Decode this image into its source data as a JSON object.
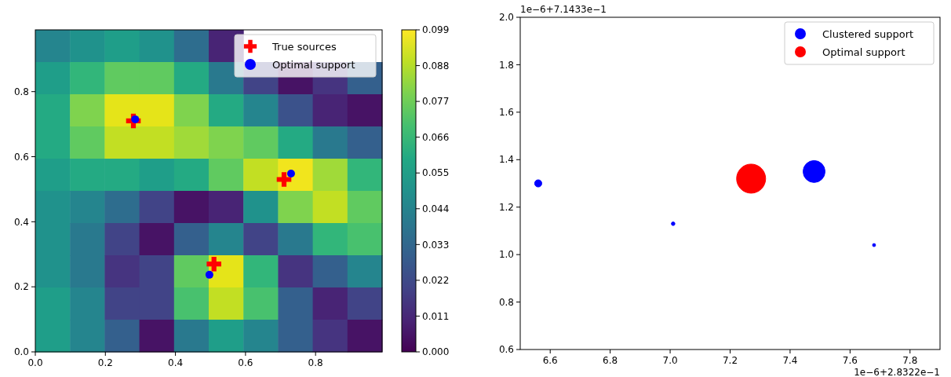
{
  "chart_data": [
    {
      "type": "heatmap",
      "categories": [
        null,
        null,
        null,
        null,
        null,
        null,
        null,
        null,
        null,
        null
      ],
      "y_categories": [
        null,
        null,
        null,
        null,
        null,
        null,
        null,
        null,
        null,
        null
      ],
      "cells": [
        [
          0.045,
          0.05,
          0.055,
          0.05,
          0.035,
          0.01,
          null,
          null,
          null,
          null
        ],
        [
          0.055,
          0.065,
          0.075,
          0.075,
          0.06,
          0.04,
          0.02,
          0.005,
          0.015,
          0.03
        ],
        [
          0.06,
          0.08,
          0.095,
          0.095,
          0.08,
          0.06,
          0.045,
          0.025,
          0.01,
          0.005
        ],
        [
          0.06,
          0.075,
          0.09,
          0.09,
          0.085,
          0.08,
          0.075,
          0.06,
          0.04,
          0.03
        ],
        [
          0.055,
          0.06,
          0.06,
          0.055,
          0.06,
          0.075,
          0.09,
          0.097,
          0.085,
          0.065
        ],
        [
          0.05,
          0.045,
          0.035,
          0.02,
          0.005,
          0.01,
          0.05,
          0.08,
          0.09,
          0.075
        ],
        [
          0.05,
          0.04,
          0.02,
          0.005,
          0.03,
          0.045,
          0.02,
          0.04,
          0.065,
          0.07
        ],
        [
          0.05,
          0.04,
          0.015,
          0.02,
          0.075,
          0.095,
          0.065,
          0.015,
          0.03,
          0.045
        ],
        [
          0.055,
          0.045,
          0.02,
          0.02,
          0.07,
          0.09,
          0.07,
          0.03,
          0.01,
          0.02
        ],
        [
          0.055,
          0.045,
          0.03,
          0.005,
          0.04,
          0.055,
          0.045,
          0.03,
          0.015,
          0.005
        ]
      ],
      "clim": [
        0,
        0.099
      ],
      "cticks": [
        {
          "value": 0,
          "label": "0.000"
        },
        {
          "value": 0.011,
          "label": "0.011"
        },
        {
          "value": 0.022,
          "label": "0.022"
        },
        {
          "value": 0.033,
          "label": "0.033"
        },
        {
          "value": 0.044,
          "label": "0.044"
        },
        {
          "value": 0.055,
          "label": "0.055"
        },
        {
          "value": 0.066,
          "label": "0.066"
        },
        {
          "value": 0.077,
          "label": "0.077"
        },
        {
          "value": 0.088,
          "label": "0.088"
        },
        {
          "value": 0.099,
          "label": "0.099"
        }
      ]
    },
    {
      "type": "scatter",
      "xlim": [
        0,
        0.99
      ],
      "ylim": [
        0,
        0.99
      ],
      "xticks": [
        {
          "value": 0,
          "label": "0.0"
        },
        {
          "value": 0.2,
          "label": "0.2"
        },
        {
          "value": 0.4,
          "label": "0.4"
        },
        {
          "value": 0.6,
          "label": "0.6"
        },
        {
          "value": 0.8,
          "label": "0.8"
        }
      ],
      "yticks": [
        {
          "value": 0,
          "label": "0.0"
        },
        {
          "value": 0.2,
          "label": "0.2"
        },
        {
          "value": 0.4,
          "label": "0.4"
        },
        {
          "value": 0.6,
          "label": "0.6"
        },
        {
          "value": 0.8,
          "label": "0.8"
        }
      ],
      "series": [
        {
          "name": "True sources",
          "color": "#ff0000",
          "marker": "cross",
          "x": [
            0.28,
            0.71,
            0.51
          ],
          "values": [
            0.71,
            0.53,
            0.27
          ]
        },
        {
          "name": "Optimal support",
          "color": "#0000ff",
          "marker": "circle",
          "x": [
            0.285,
            0.73,
            0.497
          ],
          "values": [
            0.715,
            0.548,
            0.237
          ]
        }
      ],
      "legend": "top right"
    },
    {
      "type": "bubble",
      "xlim": [
        6.5,
        7.9
      ],
      "ylim": [
        0.6,
        2.0
      ],
      "xticks": [
        6.6,
        6.8,
        {
          "value": 7,
          "label": "7.0"
        },
        7.2,
        7.4,
        7.6,
        7.8
      ],
      "yticks": [
        0.6,
        0.8,
        {
          "value": 1,
          "label": "1.0"
        },
        1.2,
        1.4,
        1.6,
        1.8,
        {
          "value": 2,
          "label": "2.0"
        }
      ],
      "annotations": [
        "1e−6+7.1433e−1",
        "1e−6+2.8322e−1"
      ],
      "series": [
        {
          "name": "Clustered support",
          "color": "#0000ff",
          "x": [
            6.56,
            7.01,
            7.48,
            7.68
          ],
          "values": [
            1.3,
            1.13,
            1.35,
            1.04
          ],
          "sizes": [
            0.06,
            0.015,
            0.57,
            0.011
          ]
        },
        {
          "name": "Optimal support",
          "color": "#ff0000",
          "x": [
            7.27
          ],
          "values": [
            1.32
          ],
          "sizes": [
            1
          ]
        }
      ],
      "legend": "top right"
    }
  ]
}
